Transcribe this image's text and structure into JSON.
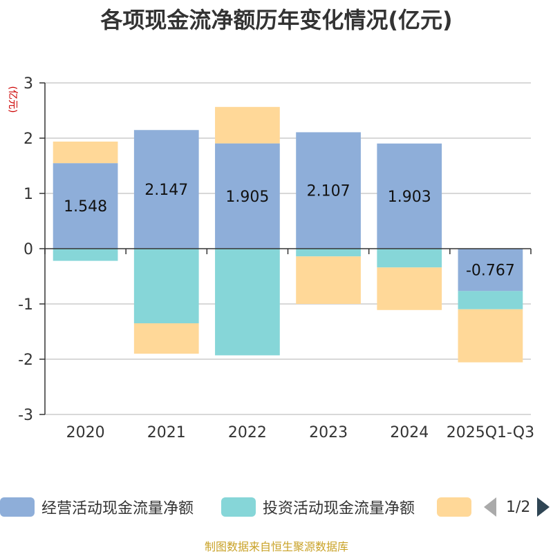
{
  "title": "各项现金流净额历年变化情况(亿元)",
  "unit_label": "(亿元)",
  "source": "制图数据来自恒生聚源数据库",
  "legend": {
    "items": [
      {
        "label": "经营活动现金流量净额",
        "color": "#8eaed9"
      },
      {
        "label": "投资活动现金流量净额",
        "color": "#86d6d8"
      },
      {
        "label": "",
        "color": "#ffd898"
      }
    ],
    "pager": "1/2"
  },
  "chart_data": {
    "type": "bar",
    "stacked": true,
    "categories": [
      "2020",
      "2021",
      "2022",
      "2023",
      "2024",
      "2025Q1-Q3"
    ],
    "series": [
      {
        "name": "经营活动现金流量净额",
        "color": "#8eaed9",
        "values": [
          1.548,
          2.147,
          1.905,
          2.107,
          1.903,
          -0.767
        ],
        "show_labels": true
      },
      {
        "name": "投资活动现金流量净额",
        "color": "#86d6d8",
        "values": [
          -0.22,
          -1.35,
          -1.93,
          -0.14,
          -0.34,
          -0.33
        ],
        "show_labels": false
      },
      {
        "color": "#ffd898",
        "values": [
          0.39,
          -0.55,
          0.66,
          -0.86,
          -0.77,
          -0.96
        ],
        "show_labels": false
      }
    ],
    "ylim": [
      -3,
      3
    ],
    "yticks": [
      -3,
      -2,
      -1,
      0,
      1,
      2,
      3
    ],
    "grid": true
  }
}
